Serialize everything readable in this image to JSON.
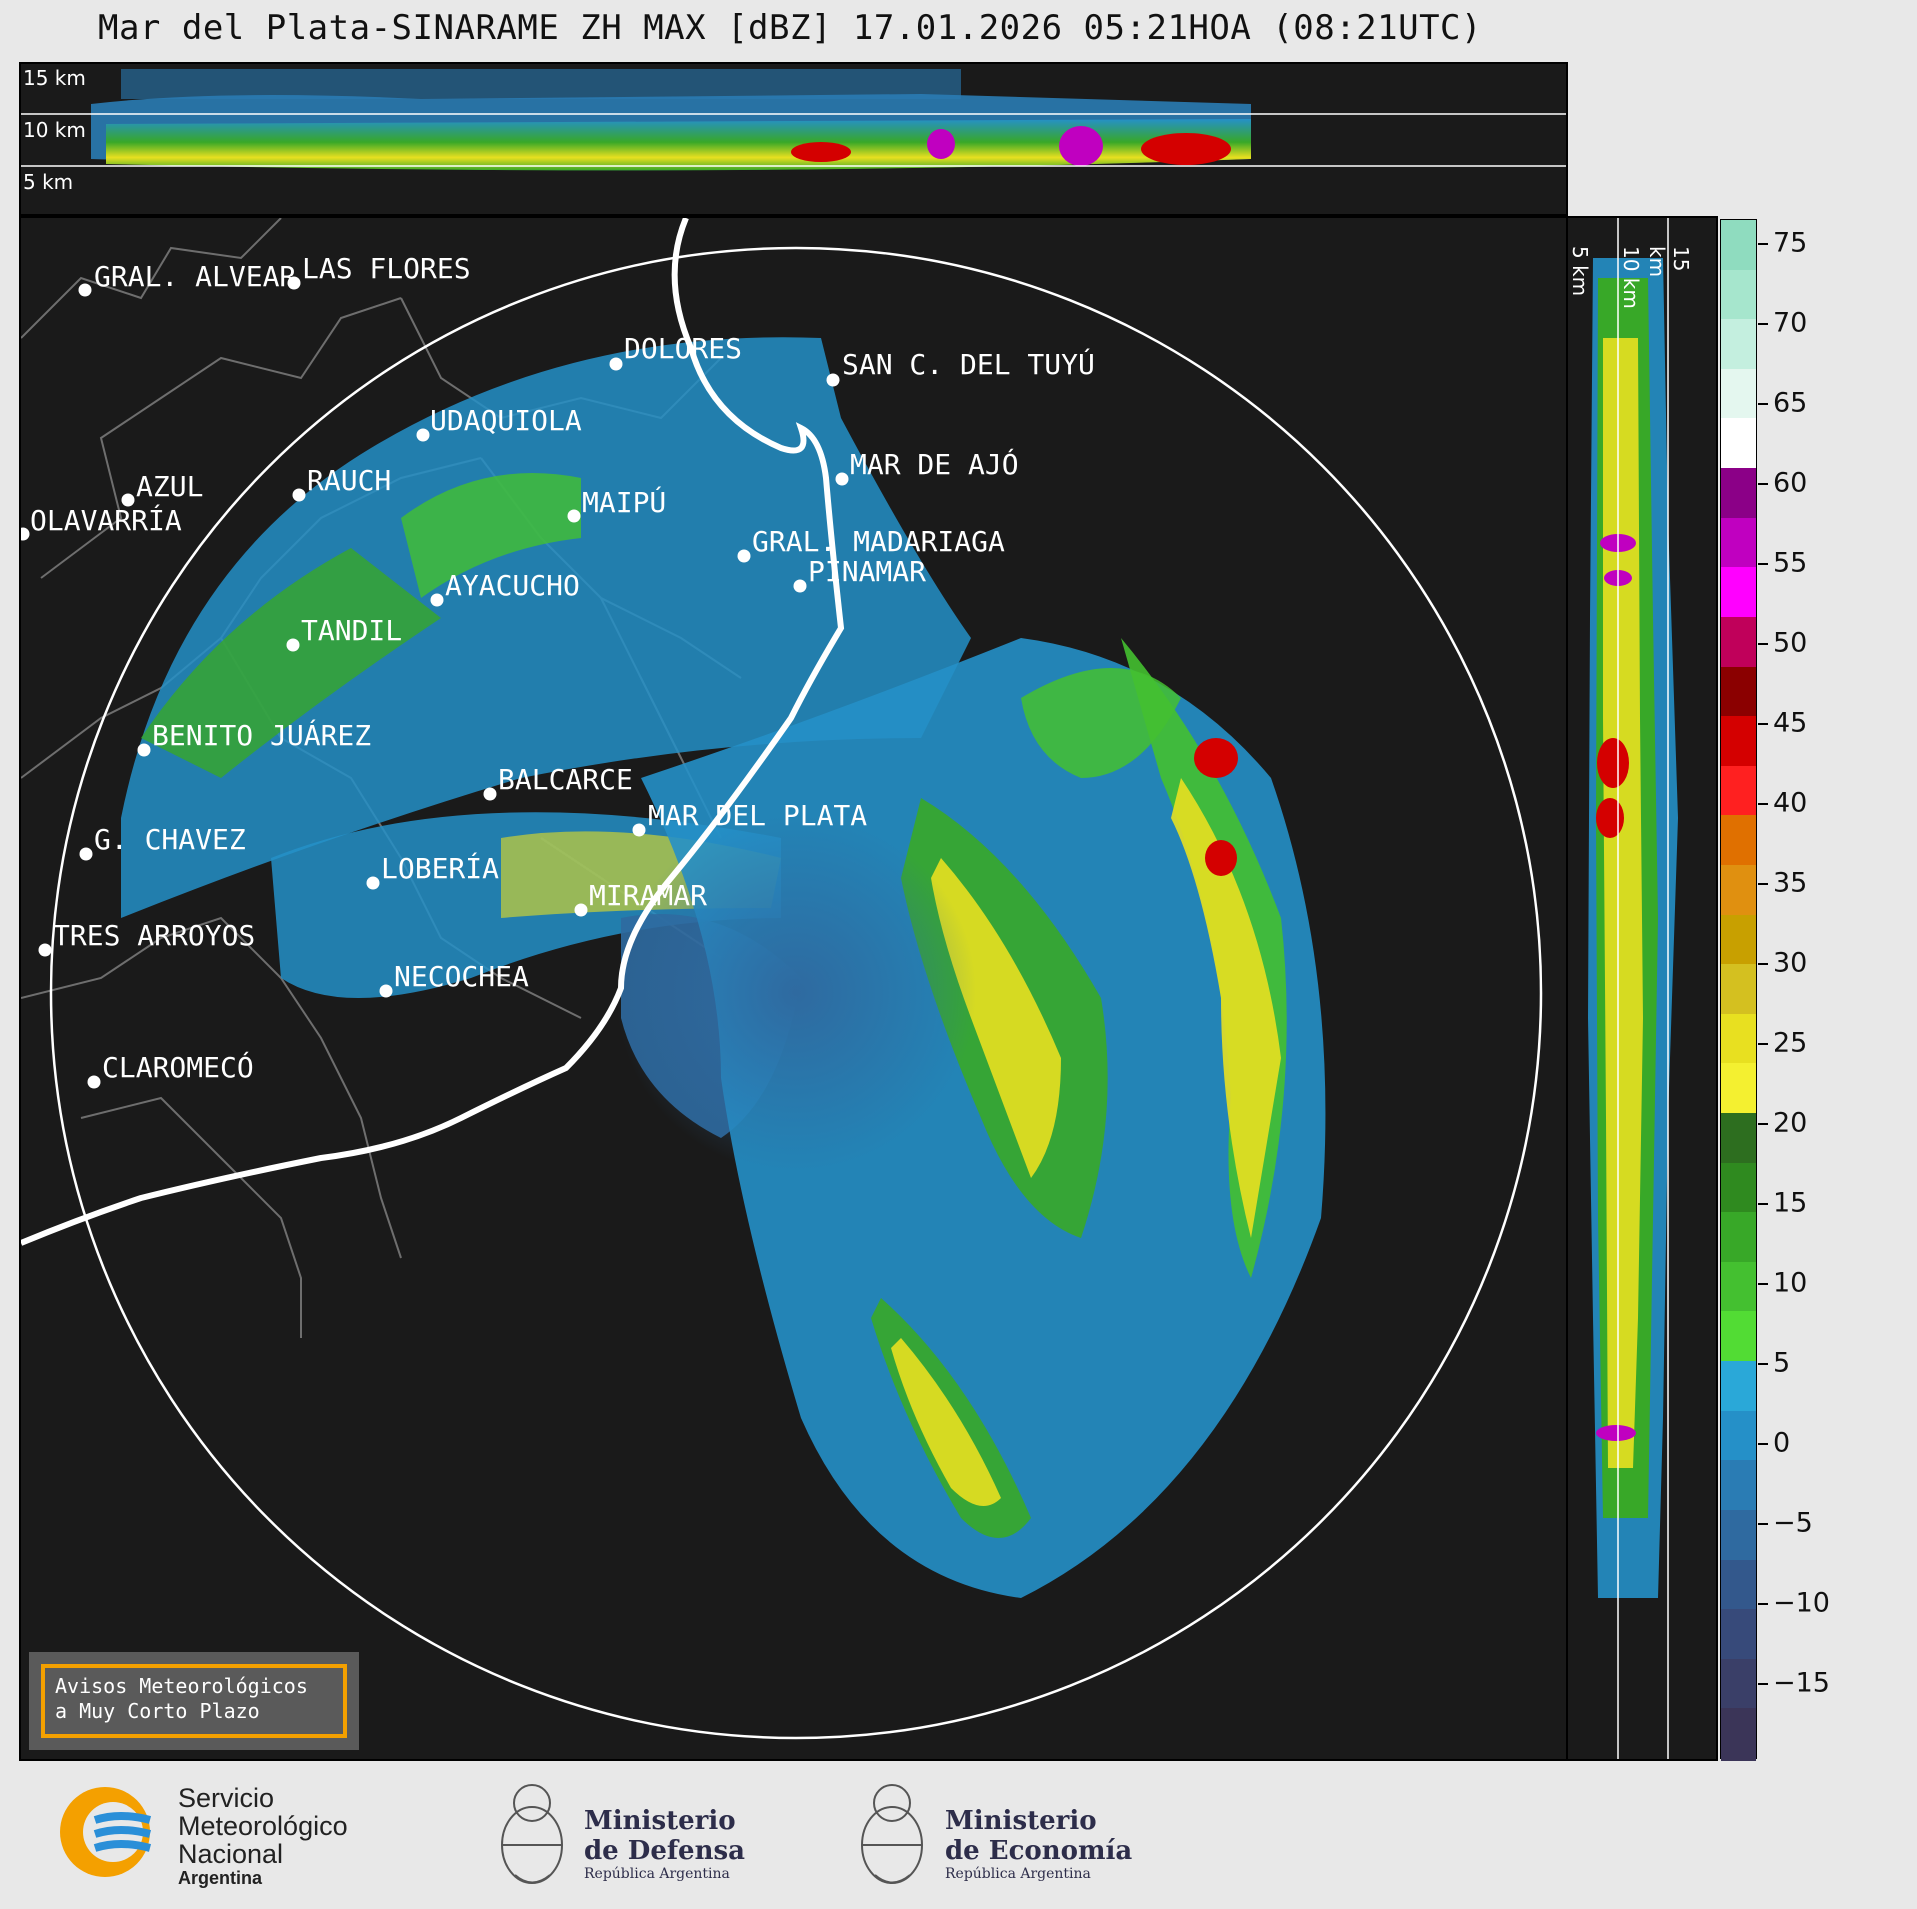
{
  "title": "Mar del Plata-SINARAME ZH MAX [dBZ] 17.01.2026 05:21HOA (08:21UTC)",
  "top_panel": {
    "km_labels": [
      "15 km",
      "10 km",
      "5 km"
    ]
  },
  "side_panel": {
    "km_labels": [
      "5 km",
      "10 km",
      "15 km"
    ]
  },
  "colorbar": {
    "unit": "dBZ",
    "ticks": [
      "75",
      "70",
      "65",
      "60",
      "55",
      "50",
      "45",
      "40",
      "35",
      "30",
      "25",
      "20",
      "15",
      "10",
      "5",
      "0",
      "−5",
      "−10",
      "−15"
    ],
    "colors": [
      "#8fdcbf",
      "#a6e6cd",
      "#c4efdf",
      "#e4f7ef",
      "#ffffff",
      "#8b0087",
      "#c000c0",
      "#ff00ff",
      "#c0005a",
      "#8b0000",
      "#d40000",
      "#ff2020",
      "#e07000",
      "#e09010",
      "#c8a000",
      "#d4c020",
      "#e8e020",
      "#f4f030",
      "#2d6e1f",
      "#2f8a1f",
      "#38a828",
      "#44c030",
      "#52dc34",
      "#2aa8d8",
      "#2590c8",
      "#2a7cb4",
      "#2f6aa0",
      "#33588c",
      "#374a7a",
      "#3a3f68",
      "#3b3558"
    ]
  },
  "cities": [
    {
      "name": "GRAL. ALVEAR"
    },
    {
      "name": "LAS FLORES"
    },
    {
      "name": "DOLORES"
    },
    {
      "name": "SAN C. DEL TUYÚ"
    },
    {
      "name": "UDAQUIOLA"
    },
    {
      "name": "MAR DE AJÓ"
    },
    {
      "name": "AZUL"
    },
    {
      "name": "RAUCH"
    },
    {
      "name": "OLAVARRÍA"
    },
    {
      "name": "MAIPÚ"
    },
    {
      "name": "GRAL. MADARIAGA"
    },
    {
      "name": "PINAMAR"
    },
    {
      "name": "AYACUCHO"
    },
    {
      "name": "TANDIL"
    },
    {
      "name": "BENITO JUÁREZ"
    },
    {
      "name": "BALCARCE"
    },
    {
      "name": "MAR DEL PLATA"
    },
    {
      "name": "G. CHAVEZ"
    },
    {
      "name": "LOBERÍA"
    },
    {
      "name": "MIRAMAR"
    },
    {
      "name": "TRES ARROYOS"
    },
    {
      "name": "NECOCHEA"
    },
    {
      "name": "CLAROMECÓ"
    }
  ],
  "avisos": {
    "line1": "Avisos Meteorológicos",
    "line2": "a Muy Corto Plazo"
  },
  "logos": {
    "smn": {
      "line1": "Servicio",
      "line2": "Meteorológico",
      "line3": "Nacional",
      "line4": "Argentina",
      "icon": "smn-logo-icon"
    },
    "defensa": {
      "line1": "Ministerio",
      "line2": "de Defensa",
      "line3": "República Argentina",
      "icon": "national-seal-icon"
    },
    "economia": {
      "line1": "Ministerio",
      "line2": "de Economía",
      "line3": "República Argentina",
      "icon": "national-seal-icon"
    }
  }
}
